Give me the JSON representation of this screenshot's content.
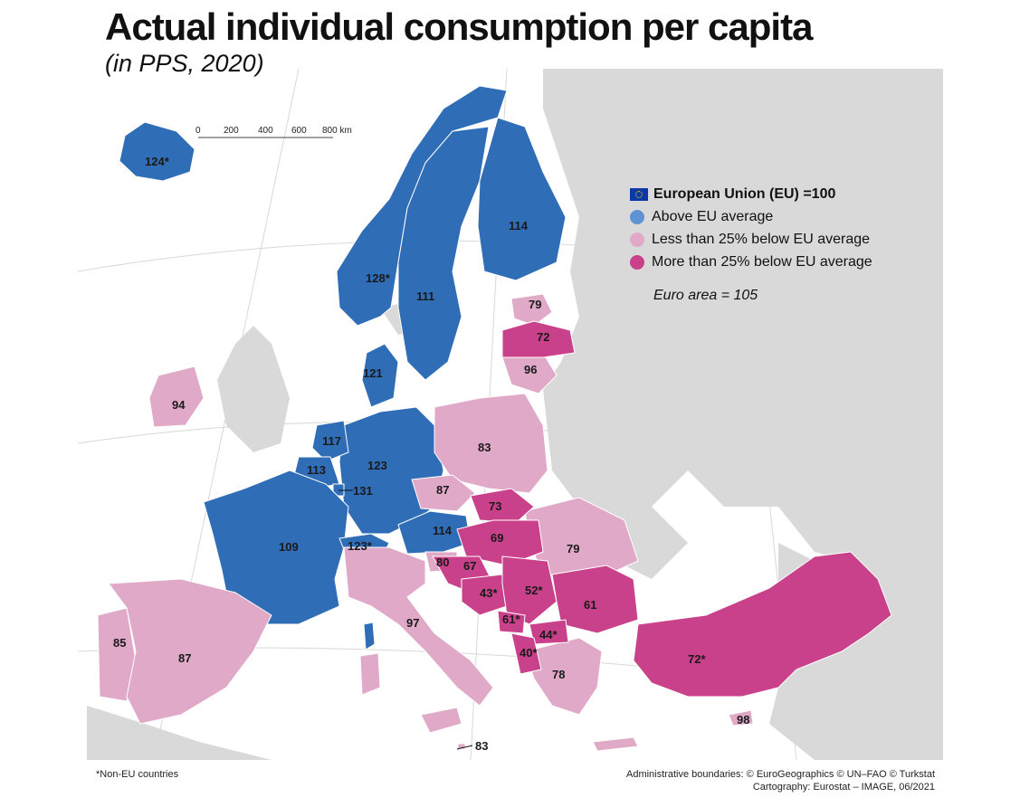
{
  "title": "Actual individual consumption per capita",
  "subtitle": "(in PPS, 2020)",
  "scale_bar": {
    "ticks": [
      "0",
      "200",
      "400",
      "600",
      "800 km"
    ]
  },
  "legend": {
    "title": "European Union (EU) =100",
    "items": [
      {
        "label": "Above EU average",
        "color": "#2f6db6"
      },
      {
        "label": "Less than 25% below EU average",
        "color": "#e0a9c8"
      },
      {
        "label": "More than 25% below EU average",
        "color": "#c9418a"
      }
    ]
  },
  "euro_area_note": "Euro area = 105",
  "colors": {
    "above": "#2f6db6",
    "less": "#e0a9c8",
    "more": "#c9418a",
    "nodata": "#d9d9d9",
    "sea": "#ffffff",
    "eu_flag": "#0b3aa6"
  },
  "regions": [
    {
      "label": "124*",
      "category": "above"
    },
    {
      "label": "128*",
      "category": "above"
    },
    {
      "label": "111",
      "category": "above"
    },
    {
      "label": "114",
      "category": "above"
    },
    {
      "label": "79",
      "category": "less"
    },
    {
      "label": "72",
      "category": "more"
    },
    {
      "label": "96",
      "category": "less"
    },
    {
      "label": "121",
      "category": "above"
    },
    {
      "label": "94",
      "category": "less"
    },
    {
      "label": "117",
      "category": "above"
    },
    {
      "label": "113",
      "category": "above"
    },
    {
      "label": "123",
      "category": "above"
    },
    {
      "label": "131",
      "category": "above"
    },
    {
      "label": "83",
      "category": "less"
    },
    {
      "label": "87",
      "category": "less"
    },
    {
      "label": "73",
      "category": "more"
    },
    {
      "label": "109",
      "category": "above"
    },
    {
      "label": "123*",
      "category": "above"
    },
    {
      "label": "114",
      "category": "above"
    },
    {
      "label": "69",
      "category": "more"
    },
    {
      "label": "79",
      "category": "less"
    },
    {
      "label": "80",
      "category": "less"
    },
    {
      "label": "67",
      "category": "more"
    },
    {
      "label": "43*",
      "category": "more"
    },
    {
      "label": "52*",
      "category": "more"
    },
    {
      "label": "61",
      "category": "more"
    },
    {
      "label": "61*",
      "category": "more"
    },
    {
      "label": "44*",
      "category": "more"
    },
    {
      "label": "40*",
      "category": "more"
    },
    {
      "label": "97",
      "category": "less"
    },
    {
      "label": "85",
      "category": "less"
    },
    {
      "label": "87",
      "category": "less"
    },
    {
      "label": "78",
      "category": "less"
    },
    {
      "label": "72*",
      "category": "more"
    },
    {
      "label": "98",
      "category": "less"
    },
    {
      "label": "83",
      "category": "less"
    }
  ],
  "footnote": "*Non-EU countries",
  "credits": [
    "Administrative boundaries: © EuroGeographics © UN–FAO © Turkstat",
    "Cartography: Eurostat – IMAGE, 06/2021"
  ]
}
